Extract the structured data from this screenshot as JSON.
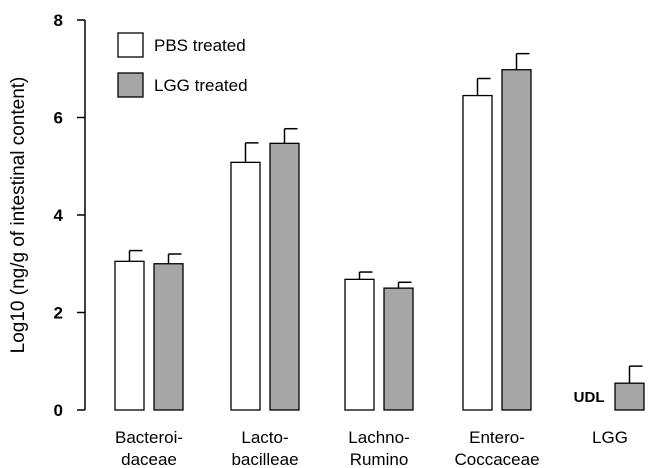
{
  "chart_data": {
    "type": "bar",
    "title": "",
    "xlabel": "",
    "ylabel": "Log10 (ng/g of intestinal content)",
    "ylim": [
      0,
      8
    ],
    "yticks": [
      0,
      2,
      4,
      6,
      8
    ],
    "grid": false,
    "legend_position": "top-left",
    "categories": [
      [
        "Bacteroi-",
        "daceae"
      ],
      [
        "Lacto-",
        "bacilleae"
      ],
      [
        "Lachno-",
        "Rumino"
      ],
      [
        "Entero-",
        "Coccaceae"
      ],
      [
        "LGG"
      ]
    ],
    "series": [
      {
        "name": "PBS treated",
        "color": "#ffffff",
        "values": [
          3.05,
          5.08,
          2.68,
          6.45,
          null
        ],
        "errors": [
          0.22,
          0.4,
          0.15,
          0.35,
          null
        ]
      },
      {
        "name": "LGG treated",
        "color": "#a6a6a6",
        "values": [
          3.0,
          5.47,
          2.5,
          6.98,
          0.55
        ],
        "errors": [
          0.2,
          0.3,
          0.12,
          0.33,
          0.35
        ]
      }
    ],
    "annotations": [
      {
        "text": "UDL",
        "category_index": 4,
        "series": "PBS treated"
      }
    ]
  }
}
